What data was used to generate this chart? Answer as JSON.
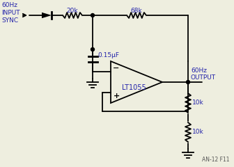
{
  "bg_color": "#eeeedf",
  "line_color": "#000000",
  "label_color": "#2222aa",
  "figsize": [
    3.36,
    2.4
  ],
  "dpi": 100,
  "labels": {
    "input": "60Hz\nINPUT\nSYNC",
    "cap": "0.15μF",
    "r1": "20k",
    "r2": "68k",
    "r3": "10k",
    "r4": "10k",
    "opamp": "LT1055",
    "output": "60Hz\nOUTPUT",
    "figure_note": "AN-12 F11"
  }
}
